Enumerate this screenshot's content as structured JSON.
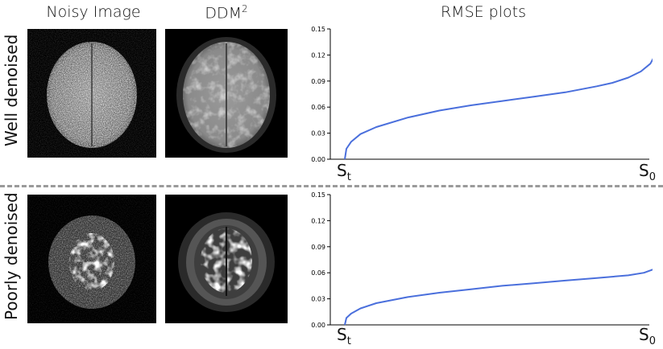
{
  "headers": {
    "noisy": "Noisy Image",
    "ddm": "DDM",
    "ddm_sup": "2",
    "rmse": "RMSE plots"
  },
  "rows": [
    {
      "label": "Well denoised"
    },
    {
      "label": "Poorly denoised"
    }
  ],
  "colors": {
    "line": "#4a6fdc",
    "divider": "#9a9a9a"
  },
  "chart_data": [
    {
      "type": "line",
      "title": "",
      "xlabel": "",
      "ylabel": "",
      "x_tick_start": {
        "base": "S",
        "sub": "t"
      },
      "x_tick_end": {
        "base": "S",
        "sub": "0"
      },
      "ylim": [
        0,
        0.15
      ],
      "yticks": [
        "0.00",
        "0.03",
        "0.06",
        "0.09",
        "0.12",
        "0.15"
      ],
      "grid": false,
      "series": [
        {
          "x": [
            0,
            0.005,
            0.02,
            0.05,
            0.1,
            0.2,
            0.3,
            0.4,
            0.5,
            0.6,
            0.7,
            0.8,
            0.85,
            0.9,
            0.94,
            0.97,
            0.99,
            1.0
          ],
          "values": [
            0.0,
            0.012,
            0.02,
            0.029,
            0.037,
            0.048,
            0.056,
            0.062,
            0.067,
            0.072,
            0.077,
            0.084,
            0.088,
            0.094,
            0.101,
            0.11,
            0.123,
            0.136
          ]
        }
      ]
    },
    {
      "type": "line",
      "title": "",
      "xlabel": "",
      "ylabel": "",
      "x_tick_start": {
        "base": "S",
        "sub": "t"
      },
      "x_tick_end": {
        "base": "S",
        "sub": "0"
      },
      "ylim": [
        0,
        0.15
      ],
      "yticks": [
        "0.00",
        "0.03",
        "0.06",
        "0.09",
        "0.12",
        "0.15"
      ],
      "grid": false,
      "series": [
        {
          "x": [
            0,
            0.005,
            0.02,
            0.05,
            0.1,
            0.2,
            0.3,
            0.4,
            0.5,
            0.6,
            0.7,
            0.8,
            0.9,
            0.95,
            0.98,
            1.0
          ],
          "values": [
            0.0,
            0.008,
            0.013,
            0.019,
            0.025,
            0.032,
            0.037,
            0.041,
            0.045,
            0.048,
            0.051,
            0.054,
            0.057,
            0.06,
            0.064,
            0.068
          ]
        }
      ]
    }
  ]
}
